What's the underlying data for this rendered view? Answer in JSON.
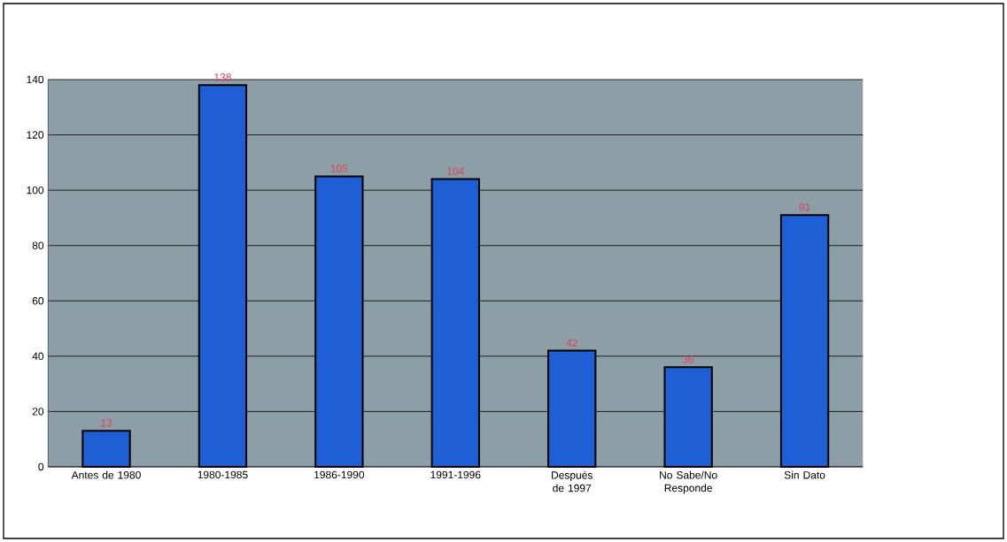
{
  "chart_data": {
    "type": "bar",
    "categories": [
      "Antes de 1980",
      "1980-1985",
      "1986-1990",
      "1991-1996",
      "Después de 1997",
      "No Sabe/No Responde",
      "Sin Dato"
    ],
    "values": [
      13,
      138,
      105,
      104,
      42,
      36,
      91
    ],
    "color": "#1f5fd6",
    "ylim": [
      0,
      140
    ],
    "yticks": [
      0,
      20,
      40,
      60,
      80,
      100,
      120,
      140
    ],
    "grid": "y",
    "data_labels": true
  }
}
